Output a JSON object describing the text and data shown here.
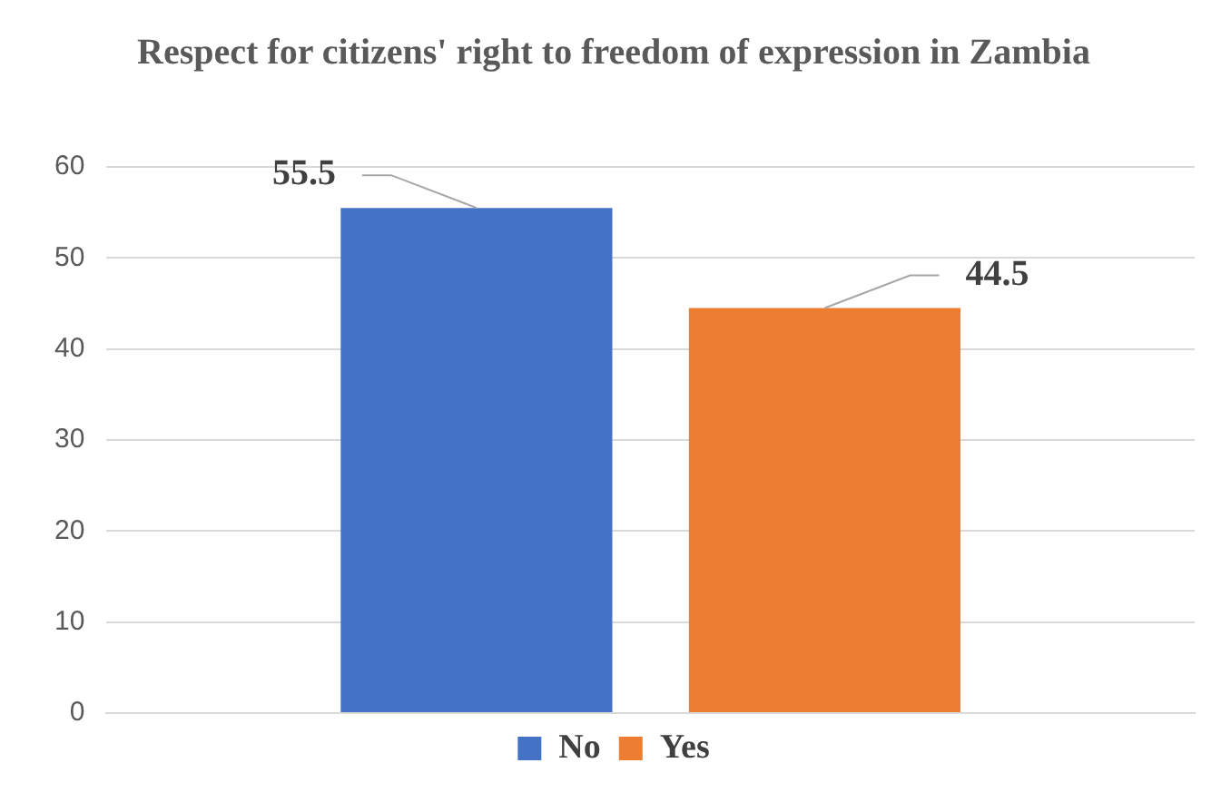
{
  "chart_data": {
    "type": "bar",
    "title": "Respect for citizens' right to freedom of expression in Zambia",
    "categories": [
      null
    ],
    "series": [
      {
        "name": "No",
        "color": "#4472c4",
        "values": [
          55.5
        ]
      },
      {
        "name": "Yes",
        "color": "#ed7d31",
        "values": [
          44.5
        ]
      }
    ],
    "ylim": [
      0,
      60
    ],
    "yticks": [
      0,
      10,
      20,
      30,
      40,
      50,
      60
    ],
    "grid": "y",
    "legend": "bottom",
    "data_labels": true
  }
}
